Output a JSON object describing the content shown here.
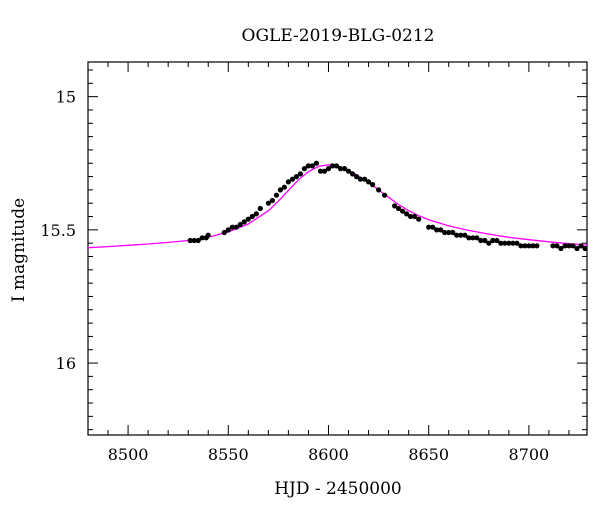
{
  "chart_data": {
    "type": "scatter",
    "title": "OGLE-2019-BLG-0212",
    "xlabel": "HJD - 2450000",
    "ylabel": "I magnitude",
    "xlim": [
      8480,
      8729
    ],
    "ylim": [
      16.27,
      14.87
    ],
    "y_inverted": true,
    "x_ticks": [
      8500,
      8550,
      8600,
      8650,
      8700
    ],
    "x_tick_labels": [
      "8500",
      "8550",
      "8600",
      "8650",
      "8700"
    ],
    "y_ticks": [
      15,
      15.5,
      16
    ],
    "y_tick_labels": [
      "15",
      "15.5",
      "16"
    ],
    "grid": false,
    "colors": {
      "points": "#000000",
      "model": "#ff00ff"
    },
    "series": [
      {
        "kind": "points",
        "x": [
          8531,
          8533,
          8535,
          8537,
          8539,
          8540,
          8548,
          8550,
          8552,
          8554,
          8556,
          8558,
          8560,
          8562,
          8564,
          8566,
          8570,
          8572,
          8574,
          8576,
          8578,
          8580,
          8582,
          8584,
          8586,
          8588,
          8590,
          8592,
          8594,
          8596,
          8598,
          8600,
          8602,
          8604,
          8606,
          8608,
          8610,
          8612,
          8614,
          8616,
          8618,
          8620,
          8622,
          8625,
          8628,
          8633,
          8635,
          8637,
          8639,
          8641,
          8643,
          8645,
          8650,
          8652,
          8654,
          8656,
          8658,
          8660,
          8662,
          8664,
          8666,
          8668,
          8670,
          8672,
          8674,
          8676,
          8678,
          8680,
          8682,
          8684,
          8686,
          8688,
          8690,
          8692,
          8694,
          8696,
          8698,
          8700,
          8702,
          8704,
          8712,
          8714,
          8716,
          8718,
          8720,
          8722,
          8724,
          8726,
          8728
        ],
        "y": [
          15.54,
          15.54,
          15.54,
          15.53,
          15.53,
          15.52,
          15.51,
          15.5,
          15.49,
          15.49,
          15.48,
          15.47,
          15.46,
          15.45,
          15.44,
          15.42,
          15.4,
          15.39,
          15.37,
          15.35,
          15.34,
          15.32,
          15.31,
          15.3,
          15.29,
          15.27,
          15.26,
          15.26,
          15.25,
          15.28,
          15.28,
          15.27,
          15.26,
          15.26,
          15.27,
          15.27,
          15.28,
          15.29,
          15.3,
          15.31,
          15.31,
          15.32,
          15.33,
          15.35,
          15.37,
          15.41,
          15.42,
          15.43,
          15.44,
          15.45,
          15.45,
          15.46,
          15.49,
          15.49,
          15.5,
          15.5,
          15.51,
          15.51,
          15.51,
          15.52,
          15.52,
          15.52,
          15.53,
          15.53,
          15.53,
          15.54,
          15.54,
          15.55,
          15.54,
          15.54,
          15.55,
          15.55,
          15.55,
          15.55,
          15.55,
          15.56,
          15.56,
          15.56,
          15.56,
          15.56,
          15.56,
          15.56,
          15.57,
          15.56,
          15.56,
          15.56,
          15.57,
          15.56,
          15.57
        ]
      },
      {
        "kind": "model",
        "x": [
          8480,
          8490,
          8500,
          8510,
          8520,
          8530,
          8540,
          8550,
          8560,
          8570,
          8575,
          8580,
          8585,
          8590,
          8595,
          8600,
          8603,
          8605,
          8610,
          8615,
          8620,
          8625,
          8630,
          8635,
          8640,
          8645,
          8650,
          8660,
          8670,
          8680,
          8690,
          8700,
          8710,
          8720,
          8729
        ],
        "y": [
          15.567,
          15.563,
          15.558,
          15.553,
          15.547,
          15.54,
          15.528,
          15.508,
          15.478,
          15.428,
          15.392,
          15.352,
          15.312,
          15.282,
          15.262,
          15.256,
          15.258,
          15.262,
          15.276,
          15.298,
          15.322,
          15.35,
          15.378,
          15.405,
          15.428,
          15.447,
          15.462,
          15.485,
          15.502,
          15.516,
          15.528,
          15.537,
          15.545,
          15.552,
          15.557
        ]
      }
    ]
  }
}
